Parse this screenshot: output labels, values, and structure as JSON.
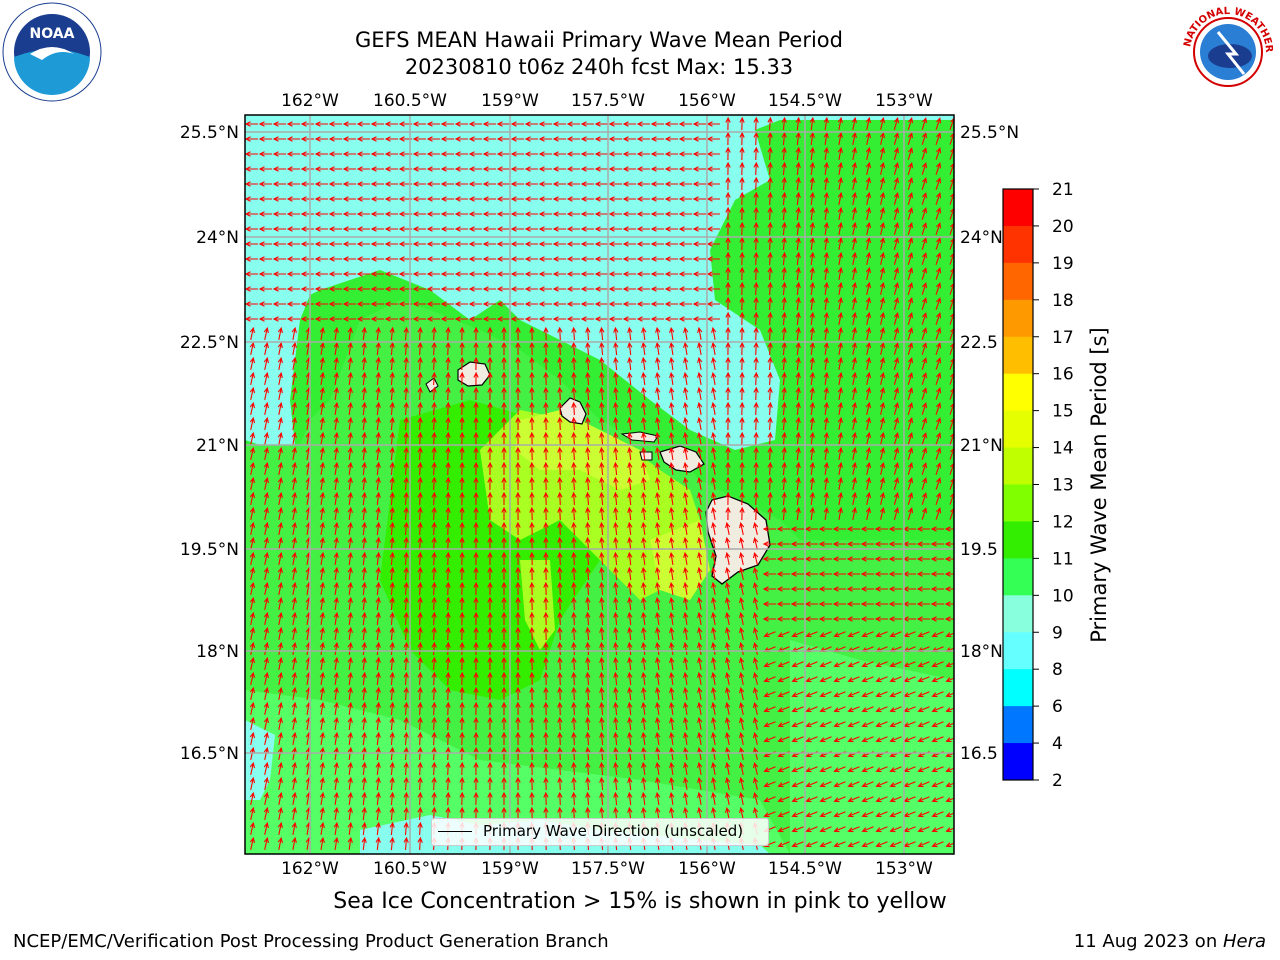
{
  "title": {
    "line1": "GEFS MEAN Hawaii Primary Wave Mean Period",
    "line2": "20230810 t06z 240h fcst   Max: 15.33"
  },
  "logos": {
    "left": "noaa-logo",
    "right": "nws-logo",
    "left_text": "NOAA",
    "right_text": "NATIONAL WEATHER SERVICE"
  },
  "axes": {
    "lon_ticks": [
      "162°W",
      "160.5°W",
      "159°W",
      "157.5°W",
      "156°W",
      "154.5°W",
      "153°W"
    ],
    "lat_ticks": [
      "25.5°N",
      "24°N",
      "22.5°N",
      "21°N",
      "19.5°N",
      "18°N",
      "16.5°N"
    ],
    "lat_ticks_right": [
      "25.5°N",
      "24°N",
      "22.5",
      "21°N",
      "19.5",
      "18°N",
      "16.5"
    ]
  },
  "legend": {
    "label": "Primary Wave Direction (unscaled)"
  },
  "colorbar": {
    "label": "Primary Wave Mean Period [s]",
    "ticks": [
      "21",
      "20",
      "19",
      "18",
      "17",
      "16",
      "15",
      "14",
      "13",
      "12",
      "11",
      "10",
      "9",
      "8",
      "6",
      "4",
      "2"
    ],
    "colors": [
      "#ff0000",
      "#ff3300",
      "#ff6600",
      "#ff9900",
      "#ffbf00",
      "#ffff00",
      "#e5ff00",
      "#bfff00",
      "#80ff00",
      "#33ee00",
      "#33ff55",
      "#88ffdd",
      "#66ffff",
      "#00ffff",
      "#0077ff",
      "#0000ff"
    ]
  },
  "colors": {
    "green": "#33ee33",
    "cyan": "#88ffee",
    "lightgreen": "#55ff55",
    "yellow": "#ccff33",
    "land": "#f0ece0",
    "arrow": "#ff0000",
    "grid": "#aaaaaa"
  },
  "footer": {
    "note": "Sea Ice Concentration > 15% is shown in pink to yellow",
    "left": "NCEP/EMC/Verification Post Processing Product Generation Branch",
    "date": "11 Aug 2023 on ",
    "machine": "Hera"
  }
}
